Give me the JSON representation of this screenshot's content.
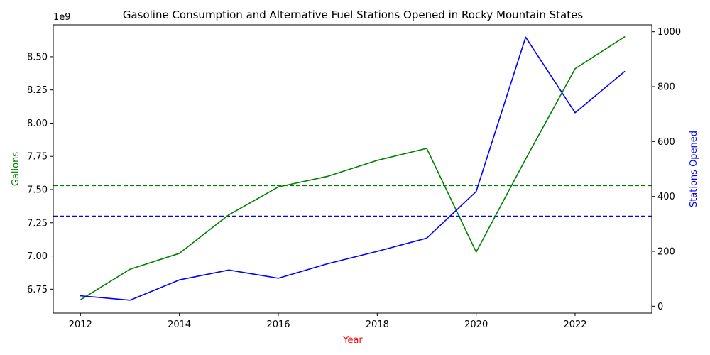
{
  "chart_data": {
    "type": "line",
    "title": "Gasoline Consumption and Alternative Fuel Stations Opened in Rocky Mountain States",
    "xlabel": "Year",
    "ylabel_left": "Gallons",
    "ylabel_right": "Stations Opened",
    "left_offset_label": "1e9",
    "x": [
      2012,
      2013,
      2014,
      2015,
      2016,
      2017,
      2018,
      2019,
      2020,
      2021,
      2022,
      2023
    ],
    "xlim": [
      2011.45,
      2023.55
    ],
    "x_ticks": [
      2012,
      2014,
      2016,
      2018,
      2020,
      2022
    ],
    "left_ylim": [
      6.57,
      8.74
    ],
    "left_ticks": [
      6.75,
      7.0,
      7.25,
      7.5,
      7.75,
      8.0,
      8.25,
      8.5
    ],
    "left_tick_labels": [
      "6.75",
      "7.00",
      "7.25",
      "7.50",
      "7.75",
      "8.00",
      "8.25",
      "8.50"
    ],
    "right_ylim": [
      -25,
      1025
    ],
    "right_ticks": [
      0,
      200,
      400,
      600,
      800,
      1000
    ],
    "right_tick_labels": [
      "0",
      "200",
      "400",
      "600",
      "800",
      "1000"
    ],
    "series": [
      {
        "axis": "left",
        "color": "#008000",
        "values": [
          6.67,
          6.9,
          7.02,
          7.31,
          7.52,
          7.6,
          7.72,
          7.81,
          7.03,
          7.73,
          8.41,
          8.65
        ]
      },
      {
        "axis": "right",
        "color": "#0000ff",
        "values": [
          38,
          22,
          96,
          132,
          102,
          155,
          200,
          248,
          418,
          980,
          705,
          855
        ]
      }
    ],
    "reference_lines": [
      {
        "axis": "left",
        "value": 7.53,
        "color": "#008000",
        "style": "dashed"
      },
      {
        "axis": "right",
        "value": 328,
        "color": "#0000ff",
        "style": "dashed"
      }
    ],
    "xlabel_color": "#ff0000",
    "ylabel_left_color": "#008000",
    "ylabel_right_color": "#0000ff",
    "grid": false,
    "legend": "none"
  }
}
